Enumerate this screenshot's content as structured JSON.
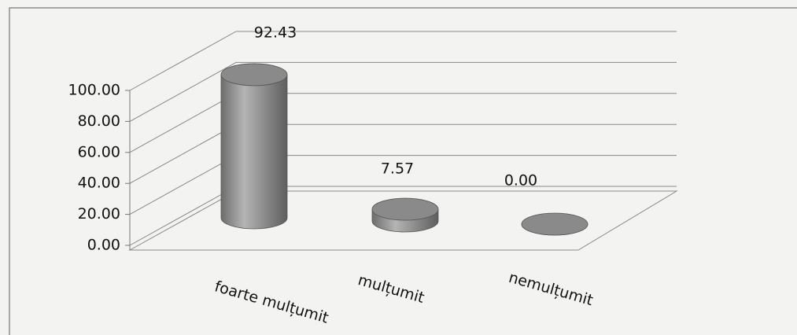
{
  "chart_data": {
    "type": "bar3d",
    "categories": [
      "foarte mulțumit",
      "mulțumit",
      "nemulțumit"
    ],
    "values": [
      92.43,
      7.57,
      0
    ],
    "value_labels": [
      "92.43",
      "7.57",
      "0.00"
    ],
    "color": "#8c8c8c",
    "ylim": [
      0,
      100
    ],
    "yticks": [
      {
        "value": 0,
        "label": "0.00"
      },
      {
        "value": 20,
        "label": "20.00"
      },
      {
        "value": 40,
        "label": "40.00"
      },
      {
        "value": 60,
        "label": "60.00"
      },
      {
        "value": 80,
        "label": "80.00"
      },
      {
        "value": 100,
        "label": "100.00"
      }
    ],
    "grid": true
  }
}
